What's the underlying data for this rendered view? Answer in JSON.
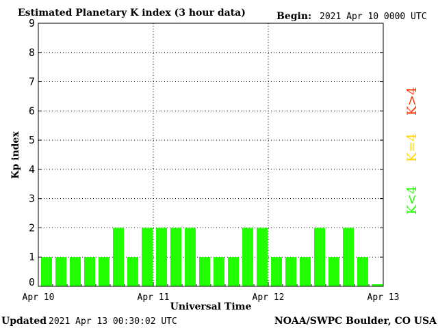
{
  "header": {
    "title": "Estimated Planetary K index (3 hour data)",
    "begin_label": "Begin:",
    "begin_value": "2021 Apr 10 0000 UTC"
  },
  "footer": {
    "updated_label": "Updated",
    "updated_value": "2021 Apr 13 00:30:02 UTC",
    "source": "NOAA/SWPC Boulder, CO USA"
  },
  "legend": {
    "high": "K>4",
    "equal": "K=4",
    "low": "K<4"
  },
  "colors": {
    "low": "#22ff00",
    "equal": "#ffd700",
    "high": "#ff3300",
    "axis": "#000000"
  },
  "chart_data": {
    "type": "bar",
    "title": "Estimated Planetary K index (3 hour data)",
    "xlabel": "Universal Time",
    "ylabel": "Kp index",
    "ylim": [
      0,
      9
    ],
    "y_ticks": [
      "0",
      "1",
      "2",
      "3",
      "4",
      "5",
      "6",
      "7",
      "8",
      "9"
    ],
    "x_ticks": [
      "Apr 10",
      "Apr 11",
      "Apr 12",
      "Apr 13"
    ],
    "grid": true,
    "interval_hours": 3,
    "values": [
      1,
      1,
      1,
      1,
      1,
      2,
      1,
      2,
      2,
      2,
      2,
      1,
      1,
      1,
      2,
      2,
      1,
      1,
      1,
      2,
      1,
      2,
      1,
      0.07
    ]
  }
}
